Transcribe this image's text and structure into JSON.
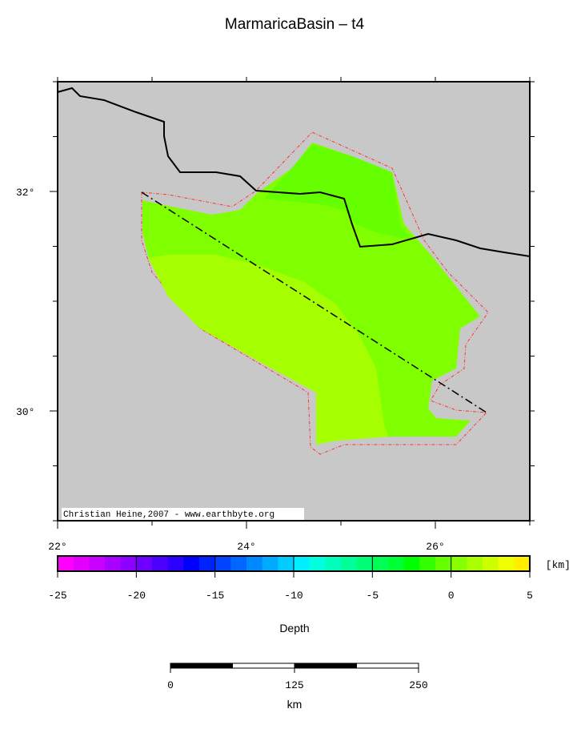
{
  "title": "MarmaricaBasin – t4",
  "map": {
    "lon_range": [
      22,
      27
    ],
    "lat_range": [
      29,
      33
    ],
    "lon_ticks": [
      {
        "value": 22,
        "label": "22°"
      },
      {
        "value": 24,
        "label": "24°"
      },
      {
        "value": 26,
        "label": "26°"
      }
    ],
    "lat_ticks": [
      {
        "value": 32,
        "label": "32°"
      },
      {
        "value": 30,
        "label": "30°"
      }
    ],
    "credit": "Christian Heine,2007 - www.earthbyte.org"
  },
  "colorbar": {
    "unit": "[km]",
    "label": "Depth",
    "range": [
      -25,
      5
    ],
    "ticks": [
      -25,
      -20,
      -15,
      -10,
      -5,
      0,
      5
    ],
    "colors": [
      "#ff00ff",
      "#e400ff",
      "#c800ff",
      "#aa00ff",
      "#8c00ff",
      "#6e00ff",
      "#4c00ff",
      "#2a00ff",
      "#0000ff",
      "#0022ff",
      "#0044ff",
      "#0066ff",
      "#0088ff",
      "#00aaff",
      "#00ccff",
      "#00eeff",
      "#00ffdd",
      "#00ffbb",
      "#00ff99",
      "#00ff77",
      "#00ff55",
      "#00ff33",
      "#00ff00",
      "#33ff00",
      "#66ff00",
      "#88ff00",
      "#aaff00",
      "#ccff00",
      "#eeff00",
      "#ffee00"
    ]
  },
  "scale_bar": {
    "ticks": [
      0,
      125,
      250
    ],
    "unit": "km"
  }
}
